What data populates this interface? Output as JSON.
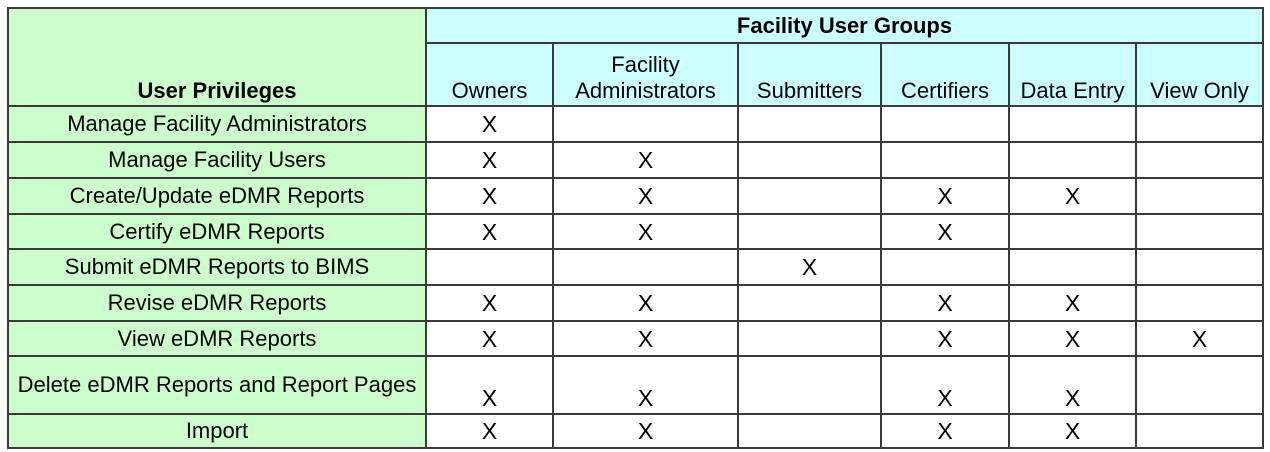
{
  "table": {
    "corner_header": "User Privileges",
    "group_header": "Facility User Groups",
    "columns": [
      "Owners",
      "Facility Administrators",
      "Submitters",
      "Certifiers",
      "Data Entry",
      "View Only"
    ],
    "mark_symbol": "X",
    "colors": {
      "privilege_column": "#ccffcc",
      "group_header": "#ccffff",
      "border": "#3a3a3a"
    },
    "rows": [
      {
        "privilege": "Manage Facility Administrators",
        "marks": [
          "X",
          "",
          "",
          "",
          "",
          ""
        ]
      },
      {
        "privilege": "Manage Facility Users",
        "marks": [
          "X",
          "X",
          "",
          "",
          "",
          ""
        ]
      },
      {
        "privilege": "Create/Update eDMR Reports",
        "marks": [
          "X",
          "X",
          "",
          "X",
          "X",
          ""
        ]
      },
      {
        "privilege": "Certify eDMR Reports",
        "marks": [
          "X",
          "X",
          "",
          "X",
          "",
          ""
        ]
      },
      {
        "privilege": "Submit eDMR Reports to BIMS",
        "marks": [
          "",
          "",
          "X",
          "",
          "",
          ""
        ]
      },
      {
        "privilege": "Revise eDMR Reports",
        "marks": [
          "X",
          "X",
          "",
          "X",
          "X",
          ""
        ]
      },
      {
        "privilege": "View eDMR Reports",
        "marks": [
          "X",
          "X",
          "",
          "X",
          "X",
          "X"
        ]
      },
      {
        "privilege": "Delete eDMR Reports and Report Pages",
        "marks": [
          "X",
          "X",
          "",
          "X",
          "X",
          ""
        ]
      },
      {
        "privilege": "Import",
        "marks": [
          "X",
          "X",
          "",
          "X",
          "X",
          ""
        ]
      }
    ]
  }
}
